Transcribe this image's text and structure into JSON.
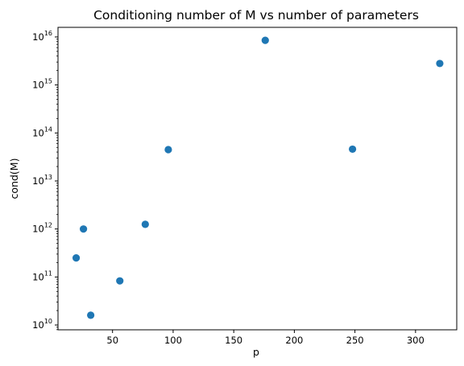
{
  "chart_data": {
    "type": "scatter",
    "title": "Conditioning number of M vs number of parameters",
    "xlabel": "p",
    "ylabel": "cond(M)",
    "y_scale": "log",
    "xlim": [
      5,
      334
    ],
    "ylim_log10": [
      9.9,
      16.2
    ],
    "x_ticks": [
      50,
      100,
      150,
      200,
      250,
      300
    ],
    "y_ticks_log10": [
      10,
      11,
      12,
      13,
      14,
      15,
      16
    ],
    "y_tick_base": "10",
    "grid": false,
    "marker_color": "#1f77b4",
    "points": [
      {
        "x": 20,
        "y": 250000000000.0
      },
      {
        "x": 26,
        "y": 1000000000000.0
      },
      {
        "x": 32,
        "y": 16000000000.0
      },
      {
        "x": 56,
        "y": 83000000000.0
      },
      {
        "x": 77,
        "y": 1250000000000.0
      },
      {
        "x": 96,
        "y": 45000000000000.0
      },
      {
        "x": 176,
        "y": 8500000000000000.0
      },
      {
        "x": 248,
        "y": 46000000000000.0
      },
      {
        "x": 320,
        "y": 2800000000000000.0
      }
    ]
  }
}
